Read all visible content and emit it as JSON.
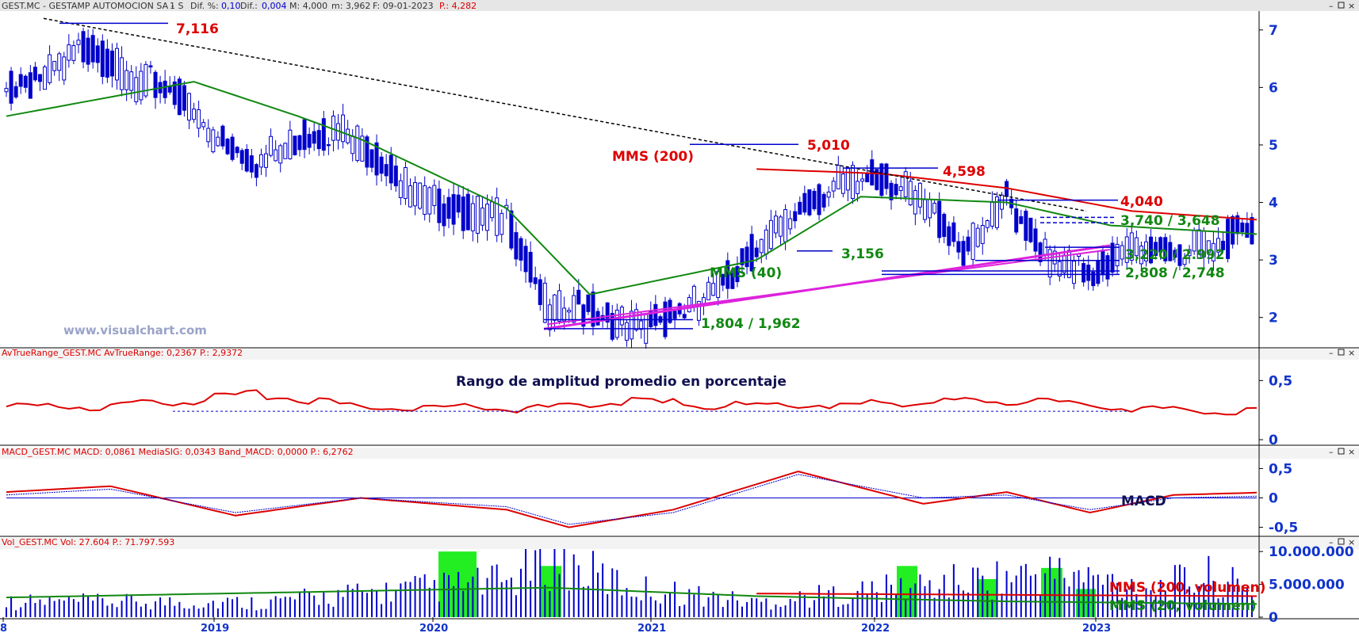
{
  "price_panel": {
    "header": {
      "symbol": "GEST.MC - GESTAMP AUTOMOCION SA -",
      "timeframe": "1 S",
      "dif_pct_label": "Dif. %:",
      "dif_pct_value": "0,10",
      "dif_label": "Dif.:",
      "dif_value": "0,004",
      "max_label": "M: 4,000",
      "min_label": "m: 3,962",
      "date": "F: 09-01-2023",
      "price": "P.: 4,282"
    },
    "watermark": "www.visualchart.com",
    "y_ticks": [
      "7",
      "6",
      "5",
      "4",
      "3",
      "2"
    ],
    "annotations": {
      "peak_2018": "7,116",
      "peak_2021": "5,010",
      "peak_2022": "4,598",
      "resistance_recent": "4,040",
      "mms200_label": "MMS (200)",
      "mms40_label": "MMS (40)",
      "support_3156": "3,156",
      "level_3740": "3,740 / 3,648",
      "level_3220": "3,220 / 2.992",
      "level_2808": "2,808 / 2,748",
      "level_1804": "1,804 / 1,962"
    }
  },
  "atr_panel": {
    "header": "AvTrueRange_GEST.MC  AvTrueRange: 0,2367  P.: 2,9372",
    "title": "Rango de amplitud promedio en porcentaje",
    "y_ticks": [
      "0,5",
      "0"
    ]
  },
  "macd_panel": {
    "header": "MACD_GEST.MC  MACD: 0,0861  MediaSIG: 0,0343  Band_MACD: 0,0000  P.: 6,2762",
    "title": "MACD",
    "y_ticks": [
      "0,5",
      "0",
      "-0,5"
    ]
  },
  "vol_panel": {
    "header": "Vol_GEST.MC  Vol: 27.604  P.: 71.797.593",
    "y_ticks": [
      "10.000.000",
      "5.000.000",
      "0"
    ],
    "mms200_label": "MMS (200, volumen)",
    "mms20_label": "MMS (20, volumen)"
  },
  "x_axis": {
    "labels": [
      "8",
      "2019",
      "2020",
      "2021",
      "2022",
      "2023"
    ]
  },
  "colors": {
    "header_bg": "#e6e6e6",
    "price_blue": "#0000cc",
    "mms200_red": "#dd0000",
    "mms40_green": "#118811",
    "support_magenta": "#dd22dd",
    "volume_highlight": "#22ee22",
    "axis_blue": "#1133cc"
  },
  "chart_data": [
    {
      "type": "candlestick",
      "series": [
        {
          "name": "MMS (200)",
          "x": [
            "2021-01",
            "2021-07",
            "2022-01",
            "2022-07",
            "2023-01"
          ],
          "values": [
            4.58,
            4.5,
            4.25,
            3.85,
            3.7
          ]
        },
        {
          "name": "MMS (40)",
          "x": [
            "2018-01",
            "2018-10",
            "2019-03",
            "2019-06",
            "2020-01",
            "2020-05",
            "2021-01",
            "2021-06",
            "2022-01",
            "2022-06",
            "2023-01"
          ],
          "values": [
            5.5,
            6.1,
            5.5,
            5.1,
            3.9,
            2.4,
            3.0,
            4.1,
            4.0,
            3.6,
            3.45
          ]
        }
      ],
      "price_series": {
        "x": [
          "2018-01",
          "2018-03",
          "2018-05",
          "2018-07",
          "2018-09",
          "2018-11",
          "2019-01",
          "2019-03",
          "2019-05",
          "2019-07",
          "2019-09",
          "2019-11",
          "2020-01",
          "2020-03",
          "2020-05",
          "2020-07",
          "2020-09",
          "2020-11",
          "2021-01",
          "2021-03",
          "2021-05",
          "2021-07",
          "2021-09",
          "2021-11",
          "2022-01",
          "2022-03",
          "2022-05",
          "2022-07",
          "2022-09",
          "2022-11",
          "2023-01"
        ],
        "values": [
          6.1,
          6.4,
          6.9,
          6.3,
          6.1,
          5.3,
          4.9,
          5.3,
          5.5,
          4.9,
          4.2,
          4.0,
          3.9,
          2.3,
          2.3,
          2.0,
          2.2,
          2.6,
          3.4,
          4.0,
          4.5,
          4.6,
          4.2,
          3.3,
          4.2,
          3.2,
          2.9,
          3.4,
          3.3,
          3.4,
          3.85
        ]
      },
      "y_ticks": [
        7,
        6,
        5,
        4,
        3,
        2
      ],
      "ylim": [
        1.5,
        7.3
      ],
      "x_ticks": [
        "2019",
        "2020",
        "2021",
        "2022",
        "2023"
      ]
    },
    {
      "type": "line",
      "series": [
        {
          "name": "AvTrueRange",
          "x": [
            "2018-01",
            "2018-06",
            "2019-01",
            "2019-06",
            "2020-01",
            "2020-02",
            "2020-06",
            "2021-01",
            "2021-06",
            "2022-01",
            "2022-06",
            "2023-01"
          ],
          "values": [
            0.3,
            0.3,
            0.4,
            0.3,
            0.3,
            0.27,
            0.35,
            0.3,
            0.32,
            0.35,
            0.3,
            0.25
          ]
        }
      ],
      "y_ticks": [
        0.5,
        0
      ],
      "ylim": [
        0,
        0.65
      ]
    },
    {
      "type": "line",
      "series": [
        {
          "name": "MACD",
          "x": [
            "2018-01",
            "2018-06",
            "2018-12",
            "2019-06",
            "2020-01",
            "2020-04",
            "2020-09",
            "2021-03",
            "2021-09",
            "2022-01",
            "2022-05",
            "2022-09",
            "2023-01"
          ],
          "values": [
            0.1,
            0.2,
            -0.3,
            0.0,
            -0.2,
            -0.5,
            -0.2,
            0.45,
            -0.1,
            0.1,
            -0.25,
            0.05,
            0.09
          ]
        },
        {
          "name": "MediaSIG",
          "x": [
            "2018-01",
            "2018-06",
            "2018-12",
            "2019-06",
            "2020-01",
            "2020-04",
            "2020-09",
            "2021-03",
            "2021-09",
            "2022-01",
            "2022-05",
            "2022-09",
            "2023-01"
          ],
          "values": [
            0.05,
            0.15,
            -0.25,
            0.0,
            -0.15,
            -0.45,
            -0.25,
            0.4,
            0.0,
            0.05,
            -0.2,
            0.0,
            0.03
          ]
        }
      ],
      "y_ticks": [
        0.5,
        0,
        -0.5
      ],
      "ylim": [
        -0.6,
        0.6
      ]
    },
    {
      "type": "bar",
      "series": [
        {
          "name": "Vol",
          "x": [
            "2018",
            "2019",
            "2020-01",
            "2020-03",
            "2020-07",
            "2021",
            "2022-03",
            "2022-08",
            "2022-11",
            "2023-01"
          ],
          "values": [
            2600000,
            2500000,
            6000000,
            10000000,
            5000000,
            2500000,
            7500000,
            5000000,
            7000000,
            3500000
          ]
        },
        {
          "name": "MMS (200, volumen)",
          "x": [
            "2021-01",
            "2023-01"
          ],
          "values": [
            3600000,
            3200000
          ]
        },
        {
          "name": "MMS (20, volumen)",
          "x": [
            "2018-01",
            "2020-03",
            "2021-01",
            "2022-01",
            "2023-01"
          ],
          "values": [
            3000000,
            4500000,
            3200000,
            2400000,
            2000000
          ]
        }
      ],
      "y_ticks": [
        10000000,
        5000000,
        0
      ],
      "ylim": [
        0,
        10500000
      ]
    }
  ]
}
